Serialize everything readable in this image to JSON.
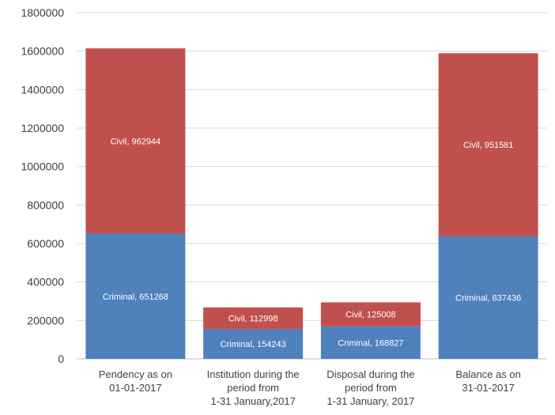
{
  "chart_data": {
    "type": "bar",
    "stacked": true,
    "categories": [
      [
        "Pendency as on",
        "01-01-2017"
      ],
      [
        "Institution during the",
        "period from",
        "1-31 January,2017"
      ],
      [
        "Disposal during the",
        "period from",
        "1-31 January, 2017"
      ],
      [
        "Balance as on",
        "31-01-2017"
      ]
    ],
    "series": [
      {
        "name": "Criminal",
        "color": "#4f81bd",
        "values": [
          651268,
          154243,
          168827,
          637436
        ]
      },
      {
        "name": "Civil",
        "color": "#c0504d",
        "values": [
          962944,
          112998,
          125008,
          951581
        ]
      }
    ],
    "data_labels": [
      [
        "Criminal, 651268",
        "Criminal, 154243",
        "Criminal, 168827",
        "Criminal, 637436"
      ],
      [
        "Civil, 962944",
        "Civil, 112998",
        "Civil, 125008",
        "Civil, 951581"
      ]
    ],
    "ylim": [
      0,
      1800000
    ],
    "yticks": [
      0,
      200000,
      400000,
      600000,
      800000,
      1000000,
      1200000,
      1400000,
      1600000,
      1800000
    ],
    "ytick_labels": [
      "0",
      "200000",
      "400000",
      "600000",
      "800000",
      "1000000",
      "1200000",
      "1400000",
      "1600000",
      "1800000"
    ],
    "grid": true,
    "legend": "none"
  }
}
